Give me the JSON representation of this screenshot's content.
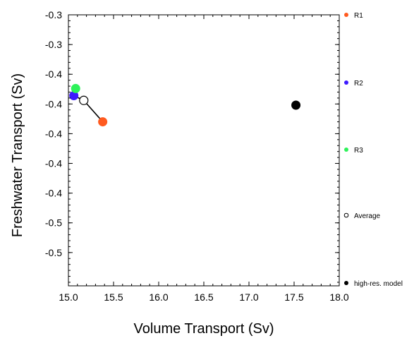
{
  "chart_data": {
    "type": "scatter",
    "title": "",
    "xlabel": "Volume Transport (Sv)",
    "ylabel": "Freshwater Transport (Sv)",
    "xlim": [
      15.0,
      18.0
    ],
    "ylim": [
      -0.528,
      -0.3
    ],
    "xticks": [
      15.0,
      15.5,
      16.0,
      16.5,
      17.0,
      17.5,
      18.0
    ],
    "xtick_labels": [
      "15.0",
      "15.5",
      "16.0",
      "16.5",
      "17.0",
      "17.5",
      "18.0"
    ],
    "yticks": [
      -0.3,
      -0.325,
      -0.35,
      -0.375,
      -0.4,
      -0.425,
      -0.45,
      -0.475,
      -0.5
    ],
    "ytick_labels": [
      "-0.3",
      "-0.3",
      "-0.4",
      "-0.4",
      "-0.4",
      "-0.4",
      "-0.4",
      "-0.5",
      "-0.5"
    ],
    "grid": false,
    "legend_position": "right",
    "series": [
      {
        "name": "R1",
        "color": "#ff5a1f",
        "marker": "filled-circle",
        "points": [
          {
            "x": 15.38,
            "y": -0.39
          }
        ]
      },
      {
        "name": "R2",
        "color": "#3d1aff",
        "marker": "filled-circle",
        "points": [
          {
            "x": 15.06,
            "y": -0.368
          }
        ]
      },
      {
        "name": "R3",
        "color": "#2ef25a",
        "marker": "filled-circle",
        "points": [
          {
            "x": 15.08,
            "y": -0.362
          }
        ]
      },
      {
        "name": "Average",
        "color": "#000000",
        "marker": "open-circle",
        "points": [
          {
            "x": 15.17,
            "y": -0.372
          }
        ]
      },
      {
        "name": "high-res. model",
        "color": "#000000",
        "marker": "filled-circle",
        "points": [
          {
            "x": 17.52,
            "y": -0.376
          }
        ]
      }
    ],
    "connector": {
      "from": "R2",
      "to": "R1",
      "through": "Average",
      "color": "#000000"
    }
  }
}
